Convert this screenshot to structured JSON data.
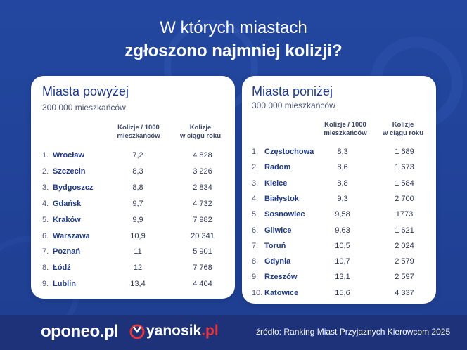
{
  "title": {
    "line1": "W których miastach",
    "line2": "zgłoszono najmniej kolizji?"
  },
  "left_card": {
    "title": "Miasta powyżej",
    "subtitle": "300 000 mieszkańców",
    "col1": [
      "Kolizje / 1000",
      "mieszkańców"
    ],
    "col2": [
      "Kolizje",
      "w ciągu roku"
    ],
    "rows": [
      {
        "num": "1.",
        "city": "Wrocław",
        "per1000": "7,2",
        "yearly": "4 828"
      },
      {
        "num": "2.",
        "city": "Szczecin",
        "per1000": "8,3",
        "yearly": "3 226"
      },
      {
        "num": "3.",
        "city": "Bydgoszcz",
        "per1000": "8,8",
        "yearly": "2 834"
      },
      {
        "num": "4.",
        "city": "Gdańsk",
        "per1000": "9,7",
        "yearly": "4 732"
      },
      {
        "num": "5.",
        "city": "Kraków",
        "per1000": "9,9",
        "yearly": "7 982"
      },
      {
        "num": "6.",
        "city": "Warszawa",
        "per1000": "10,9",
        "yearly": "20 341"
      },
      {
        "num": "7.",
        "city": "Poznań",
        "per1000": "11",
        "yearly": "5 901"
      },
      {
        "num": "8.",
        "city": "Łódź",
        "per1000": "12",
        "yearly": "7 768"
      },
      {
        "num": "9.",
        "city": "Lublin",
        "per1000": "13,4",
        "yearly": "4 404"
      }
    ]
  },
  "right_card": {
    "title": "Miasta poniżej",
    "subtitle": "300 000 mieszkańców",
    "col1": [
      "Kolizje / 1000",
      "mieszkańców"
    ],
    "col2": [
      "Kolizje",
      "w ciągu roku"
    ],
    "rows": [
      {
        "num": "1.",
        "city": "Częstochowa",
        "per1000": "8,3",
        "yearly": "1 689"
      },
      {
        "num": "2.",
        "city": "Radom",
        "per1000": "8,6",
        "yearly": "1 673"
      },
      {
        "num": "3.",
        "city": "Kielce",
        "per1000": "8,8",
        "yearly": "1 584"
      },
      {
        "num": "4.",
        "city": "Białystok",
        "per1000": "9,3",
        "yearly": "2 700"
      },
      {
        "num": "5.",
        "city": "Sosnowiec",
        "per1000": "9,58",
        "yearly": "1773"
      },
      {
        "num": "6.",
        "city": "Gliwice",
        "per1000": "9,63",
        "yearly": "1 621"
      },
      {
        "num": "7.",
        "city": "Toruń",
        "per1000": "10,5",
        "yearly": "2 024"
      },
      {
        "num": "8.",
        "city": "Gdynia",
        "per1000": "10,7",
        "yearly": "2 579"
      },
      {
        "num": "9.",
        "city": "Rzeszów",
        "per1000": "13,1",
        "yearly": "2 597"
      },
      {
        "num": "10.",
        "city": "Katowice",
        "per1000": "15,6",
        "yearly": "4 337"
      }
    ]
  },
  "footer": {
    "oponeo": "oponeo.pl",
    "yanosik_main": "yanosik",
    "yanosik_tld": ".pl",
    "source": "źródło: Ranking Miast Przyjaznych Kierowcom 2025"
  }
}
